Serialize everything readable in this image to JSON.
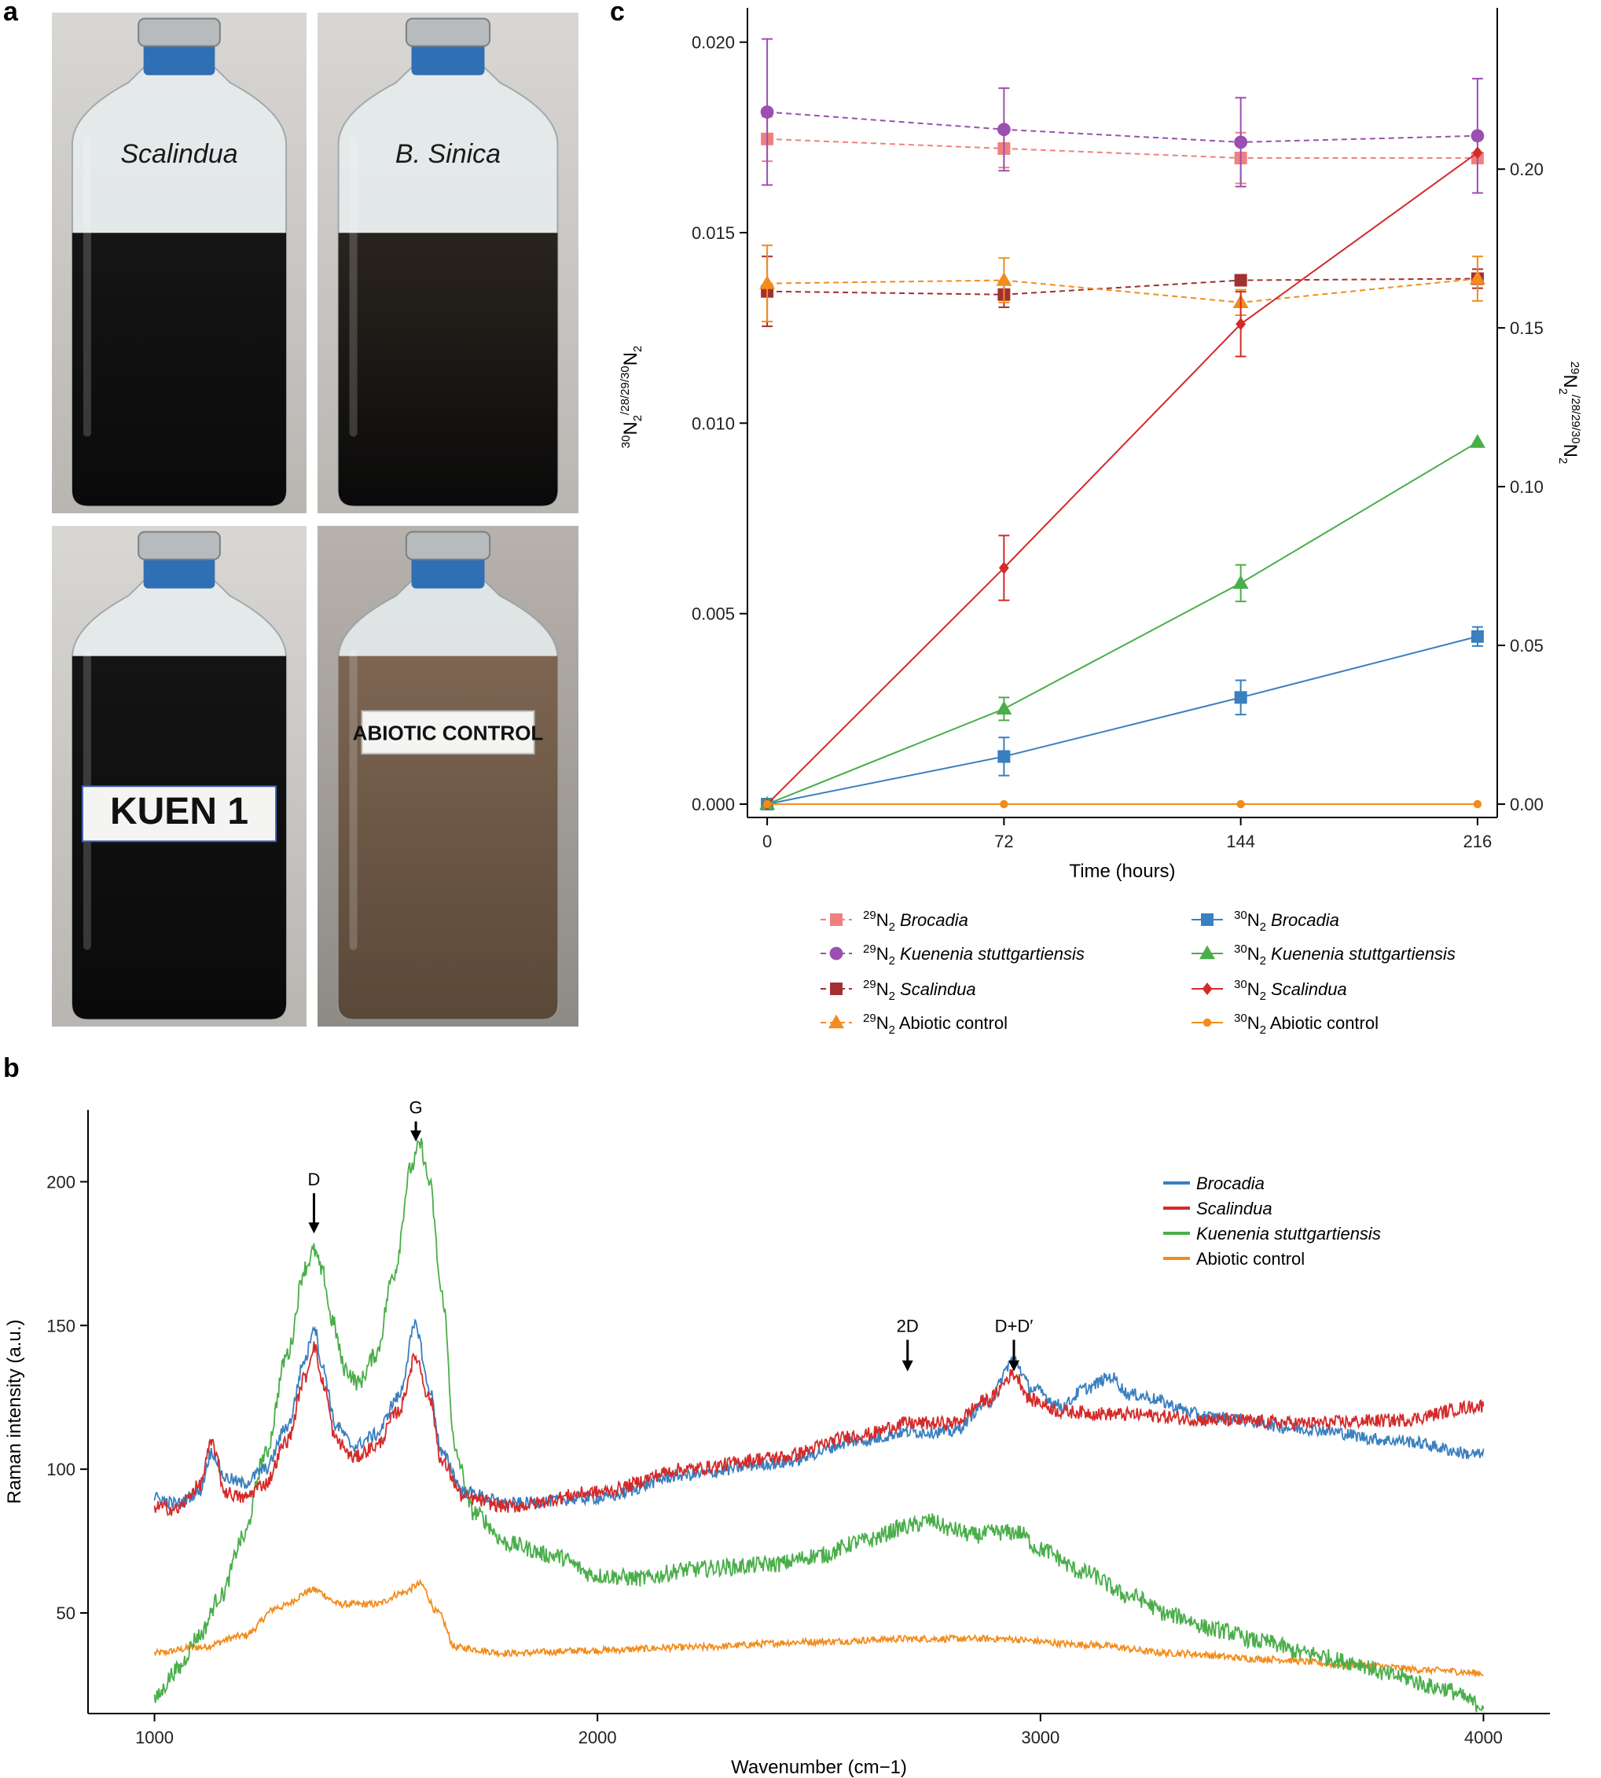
{
  "panels": {
    "a": "a",
    "b": "b",
    "c": "c"
  },
  "photos": [
    {
      "label": "Scalindua",
      "liquid": "#151515",
      "tag_style": "handwritten-italic"
    },
    {
      "label": "B. Sinica",
      "liquid": "#2a241e",
      "tag_style": "handwritten-italic"
    },
    {
      "label": "KUEN 1",
      "liquid": "#141414",
      "tag_style": "sticker"
    },
    {
      "label": "ABIOTIC CONTROL",
      "liquid": "#7d6552",
      "tag_style": "sticker"
    }
  ],
  "chart_data": [
    {
      "id": "c",
      "type": "line",
      "xlabel": "Time (hours)",
      "ylabel_left": {
        "pre": "30",
        "main": "N",
        "sub": "2",
        "sup": "/28/29/30",
        "main2": "N",
        "sub2": "2"
      },
      "ylabel_right": {
        "pre": "29",
        "main": "N",
        "sub": "2",
        "sup": "/28/29/30",
        "main2": "N",
        "sub2": "2"
      },
      "x_ticks": [
        0,
        72,
        144,
        216
      ],
      "xlim": [
        -6,
        222
      ],
      "y_left": {
        "lim": [
          -0.00035,
          0.0209
        ],
        "ticks": [
          "0.000",
          "0.005",
          "0.010",
          "0.015",
          "0.020"
        ]
      },
      "y_right": {
        "lim": [
          -0.0042,
          0.2508
        ],
        "ticks": [
          "0.00",
          "0.05",
          "0.10",
          "0.15",
          "0.20"
        ]
      },
      "x": [
        0,
        72,
        144,
        216
      ],
      "series": [
        {
          "iso": "29",
          "name": "Brocadia",
          "italic": true,
          "axis": "right",
          "dash": true,
          "color": "#f08080",
          "marker": "square",
          "y": [
            0.2095,
            0.2065,
            0.2035,
            0.2035
          ],
          "err": [
            0.007,
            0.006,
            0.008,
            0.0
          ]
        },
        {
          "iso": "29",
          "name": "Kuenenia stuttgartiensis",
          "italic": true,
          "axis": "right",
          "dash": true,
          "color": "#9b4fb0",
          "marker": "circle",
          "y": [
            0.218,
            0.2125,
            0.2085,
            0.2105
          ],
          "err": [
            0.023,
            0.013,
            0.014,
            0.018
          ]
        },
        {
          "iso": "29",
          "name": "Scalindua",
          "italic": true,
          "axis": "right",
          "dash": true,
          "color": "#a33030",
          "marker": "square",
          "y": [
            0.1615,
            0.1605,
            0.165,
            0.1655
          ],
          "err": [
            0.011,
            0.004,
            0.001,
            0.003
          ]
        },
        {
          "iso": "29",
          "name": "Abiotic control",
          "italic": false,
          "axis": "right",
          "dash": true,
          "color": "#f28c1c",
          "marker": "triangle",
          "y": [
            0.164,
            0.165,
            0.158,
            0.1655
          ],
          "err": [
            0.012,
            0.007,
            0.004,
            0.007
          ]
        },
        {
          "iso": "30",
          "name": "Brocadia",
          "italic": true,
          "axis": "left",
          "dash": false,
          "color": "#3a7fbf",
          "marker": "square",
          "y": [
            0.0,
            0.00125,
            0.0028,
            0.0044
          ],
          "err": [
            0.0,
            0.0005,
            0.00045,
            0.00025
          ]
        },
        {
          "iso": "30",
          "name": "Kuenenia stuttgartiensis",
          "italic": true,
          "axis": "left",
          "dash": false,
          "color": "#4aae4a",
          "marker": "triangle",
          "y": [
            0.0,
            0.0025,
            0.0058,
            0.0095
          ],
          "err": [
            0.0,
            0.0003,
            0.00048,
            0.0
          ]
        },
        {
          "iso": "30",
          "name": "Scalindua",
          "italic": true,
          "axis": "left",
          "dash": false,
          "color": "#d42a2a",
          "marker": "diamond",
          "y": [
            0.0,
            0.0062,
            0.0126,
            0.0171
          ],
          "err": [
            0.0,
            0.00085,
            0.00085,
            0.0
          ]
        },
        {
          "iso": "30",
          "name": "Abiotic control",
          "italic": false,
          "axis": "left",
          "dash": false,
          "color": "#f28c1c",
          "marker": "circle",
          "y": [
            0.0,
            0.0,
            0.0,
            0.0
          ],
          "err": [
            0.0,
            0.0,
            0.0,
            0.0
          ]
        }
      ],
      "legend_placement": "bottom"
    },
    {
      "id": "b",
      "type": "line",
      "xlabel": "Wavenumber (cm−1)",
      "ylabel": "Raman intensity (a.u.)",
      "xlim": [
        850,
        4150
      ],
      "ylim": [
        15,
        225
      ],
      "x_ticks": [
        1000,
        2000,
        3000,
        4000
      ],
      "y_ticks": [
        50,
        100,
        150,
        200
      ],
      "legend_placement": "top-right",
      "annotations": [
        {
          "label": "D",
          "x": 1360,
          "y_top": 196,
          "y_bottom": 182
        },
        {
          "label": "G",
          "x": 1590,
          "y_top": 221,
          "y_bottom": 214
        },
        {
          "label": "2D",
          "x": 2700,
          "y_top": 145,
          "y_bottom": 134
        },
        {
          "label": "D+D′",
          "x": 2940,
          "y_top": 145,
          "y_bottom": 134
        }
      ],
      "series": [
        {
          "name": "Brocadia",
          "color": "#3a7fbf",
          "noise": 2.2,
          "points": [
            [
              1000,
              90
            ],
            [
              1050,
              88
            ],
            [
              1100,
              92
            ],
            [
              1130,
              106
            ],
            [
              1160,
              97
            ],
            [
              1200,
              95
            ],
            [
              1250,
              100
            ],
            [
              1300,
              115
            ],
            [
              1340,
              138
            ],
            [
              1360,
              150
            ],
            [
              1380,
              135
            ],
            [
              1410,
              115
            ],
            [
              1450,
              108
            ],
            [
              1500,
              112
            ],
            [
              1550,
              125
            ],
            [
              1590,
              150
            ],
            [
              1620,
              128
            ],
            [
              1650,
              105
            ],
            [
              1700,
              92
            ],
            [
              1800,
              88
            ],
            [
              2000,
              90
            ],
            [
              2200,
              98
            ],
            [
              2400,
              102
            ],
            [
              2600,
              110
            ],
            [
              2700,
              113
            ],
            [
              2800,
              113
            ],
            [
              2880,
              123
            ],
            [
              2940,
              138
            ],
            [
              2980,
              128
            ],
            [
              3050,
              122
            ],
            [
              3100,
              128
            ],
            [
              3160,
              132
            ],
            [
              3200,
              126
            ],
            [
              3400,
              118
            ],
            [
              3600,
              114
            ],
            [
              3800,
              110
            ],
            [
              4000,
              105
            ]
          ]
        },
        {
          "name": "Scalindua",
          "color": "#d42a2a",
          "noise": 2.4,
          "points": [
            [
              1000,
              87
            ],
            [
              1050,
              86
            ],
            [
              1100,
              94
            ],
            [
              1130,
              109
            ],
            [
              1160,
              92
            ],
            [
              1200,
              90
            ],
            [
              1250,
              95
            ],
            [
              1300,
              110
            ],
            [
              1340,
              132
            ],
            [
              1360,
              143
            ],
            [
              1380,
              130
            ],
            [
              1410,
              110
            ],
            [
              1450,
              104
            ],
            [
              1500,
              108
            ],
            [
              1550,
              120
            ],
            [
              1590,
              139
            ],
            [
              1620,
              125
            ],
            [
              1650,
              102
            ],
            [
              1700,
              90
            ],
            [
              1800,
              87
            ],
            [
              2000,
              92
            ],
            [
              2200,
              100
            ],
            [
              2400,
              104
            ],
            [
              2600,
              112
            ],
            [
              2700,
              116
            ],
            [
              2800,
              116
            ],
            [
              2880,
              124
            ],
            [
              2940,
              133
            ],
            [
              2980,
              124
            ],
            [
              3050,
              120
            ],
            [
              3200,
              119
            ],
            [
              3400,
              117
            ],
            [
              3600,
              116
            ],
            [
              3800,
              117
            ],
            [
              4000,
              122
            ]
          ]
        },
        {
          "name": "Kuenenia stuttgartiensis",
          "color": "#4aae4a",
          "noise": 3.0,
          "points": [
            [
              1000,
              20
            ],
            [
              1050,
              30
            ],
            [
              1100,
              42
            ],
            [
              1150,
              56
            ],
            [
              1200,
              76
            ],
            [
              1250,
              105
            ],
            [
              1300,
              140
            ],
            [
              1340,
              170
            ],
            [
              1360,
              176
            ],
            [
              1380,
              168
            ],
            [
              1400,
              152
            ],
            [
              1430,
              135
            ],
            [
              1460,
              130
            ],
            [
              1500,
              140
            ],
            [
              1540,
              168
            ],
            [
              1580,
              205
            ],
            [
              1600,
              213
            ],
            [
              1620,
              200
            ],
            [
              1650,
              160
            ],
            [
              1680,
              105
            ],
            [
              1720,
              85
            ],
            [
              1800,
              74
            ],
            [
              1900,
              70
            ],
            [
              2000,
              63
            ],
            [
              2100,
              62
            ],
            [
              2200,
              65
            ],
            [
              2300,
              66
            ],
            [
              2400,
              67
            ],
            [
              2500,
              70
            ],
            [
              2600,
              75
            ],
            [
              2700,
              80
            ],
            [
              2750,
              82
            ],
            [
              2800,
              79
            ],
            [
              2850,
              77
            ],
            [
              2900,
              78
            ],
            [
              2950,
              78
            ],
            [
              3000,
              72
            ],
            [
              3100,
              64
            ],
            [
              3200,
              56
            ],
            [
              3300,
              49
            ],
            [
              3400,
              44
            ],
            [
              3500,
              40
            ],
            [
              3600,
              36
            ],
            [
              3700,
              33
            ],
            [
              3800,
              28
            ],
            [
              3900,
              24
            ],
            [
              4000,
              18
            ]
          ]
        },
        {
          "name": "Abiotic control",
          "color": "#f28c1c",
          "noise": 1.2,
          "points": [
            [
              1000,
              36
            ],
            [
              1100,
              38
            ],
            [
              1200,
              42
            ],
            [
              1280,
              52
            ],
            [
              1360,
              58
            ],
            [
              1420,
              53
            ],
            [
              1500,
              53
            ],
            [
              1560,
              57
            ],
            [
              1600,
              60
            ],
            [
              1640,
              50
            ],
            [
              1680,
              38
            ],
            [
              1800,
              36
            ],
            [
              2000,
              37
            ],
            [
              2200,
              38
            ],
            [
              2500,
              40
            ],
            [
              2700,
              41
            ],
            [
              2900,
              41
            ],
            [
              3100,
              39
            ],
            [
              3300,
              36
            ],
            [
              3500,
              34
            ],
            [
              3700,
              32
            ],
            [
              3900,
              30
            ],
            [
              4000,
              29
            ]
          ]
        }
      ]
    }
  ]
}
